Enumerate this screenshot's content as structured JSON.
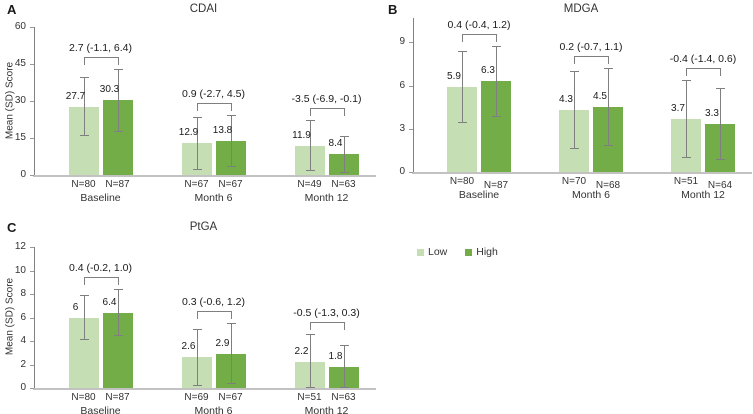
{
  "legend": {
    "items": [
      {
        "label": "Low",
        "color": "#c6deb4"
      },
      {
        "label": "High",
        "color": "#72ad48"
      }
    ]
  },
  "colors": {
    "low": "#c6deb4",
    "high": "#72ad48",
    "error_bar": "#7f7f7f"
  },
  "chart_data": [
    {
      "panel": "A",
      "type": "bar",
      "title": "CDAI",
      "ylabel": "Mean (SD) Score",
      "ylim": [
        0,
        60
      ],
      "yticks": [
        0,
        15,
        30,
        45,
        60
      ],
      "series": [
        "Low",
        "High"
      ],
      "legend_position": "right-middle-of-figure",
      "grid": false,
      "groups": [
        {
          "label": "Baseline",
          "diff_label": "2.7 (-1.1, 6.4)",
          "bars": [
            {
              "series": "Low",
              "n_label": "N=80",
              "mean": "27.7",
              "sd": 12.0
            },
            {
              "series": "High",
              "n_label": "N=87",
              "mean": "30.3",
              "sd": 12.7
            }
          ]
        },
        {
          "label": "Month 6",
          "diff_label": "0.9 (-2.7, 4.5)",
          "bars": [
            {
              "series": "Low",
              "n_label": "N=67",
              "mean": "12.9",
              "sd": 10.7
            },
            {
              "series": "High",
              "n_label": "N=67",
              "mean": "13.8",
              "sd": 10.7
            }
          ]
        },
        {
          "label": "Month 12",
          "diff_label": "-3.5 (-6.9, -0.1)",
          "bars": [
            {
              "series": "Low",
              "n_label": "N=49",
              "mean": "11.9",
              "sd": 10.3
            },
            {
              "series": "High",
              "n_label": "N=63",
              "mean": "8.4",
              "sd": 7.4
            }
          ]
        }
      ]
    },
    {
      "panel": "B",
      "type": "bar",
      "title": "MDGA",
      "ylabel": "",
      "ylim": [
        0,
        10
      ],
      "yticks": [
        0,
        3,
        6,
        9
      ],
      "series": [
        "Low",
        "High"
      ],
      "grid": false,
      "groups": [
        {
          "label": "Baseline",
          "diff_label": "0.4 (-0.4, 1.2)",
          "bars": [
            {
              "series": "Low",
              "n_label": "N=80",
              "mean": "5.9",
              "sd": 2.5
            },
            {
              "series": "High",
              "n_label": "N=87",
              "mean": "6.3",
              "sd": 2.45
            }
          ]
        },
        {
          "label": "Month 6",
          "diff_label": "0.2 (-0.7, 1.1)",
          "bars": [
            {
              "series": "Low",
              "n_label": "N=70",
              "mean": "4.3",
              "sd": 2.7
            },
            {
              "series": "High",
              "n_label": "N=68",
              "mean": "4.5",
              "sd": 2.7
            }
          ]
        },
        {
          "label": "Month 12",
          "diff_label": "-0.4 (-1.4, 0.6)",
          "bars": [
            {
              "series": "Low",
              "n_label": "N=51",
              "mean": "3.7",
              "sd": 2.7
            },
            {
              "series": "High",
              "n_label": "N=64",
              "mean": "3.3",
              "sd": 2.5
            }
          ]
        }
      ]
    },
    {
      "panel": "C",
      "type": "bar",
      "title": "PtGA",
      "ylabel": "Mean (SD) Score",
      "ylim": [
        0,
        12
      ],
      "yticks": [
        0,
        2,
        4,
        6,
        8,
        10,
        12
      ],
      "series": [
        "Low",
        "High"
      ],
      "grid": false,
      "groups": [
        {
          "label": "Baseline",
          "diff_label": "0.4 (-0.2, 1.0)",
          "bars": [
            {
              "series": "Low",
              "n_label": "N=80",
              "mean": "6",
              "sd": 1.9
            },
            {
              "series": "High",
              "n_label": "N=87",
              "mean": "6.4",
              "sd": 2.0
            }
          ]
        },
        {
          "label": "Month 6",
          "diff_label": "0.3 (-0.6, 1.2)",
          "bars": [
            {
              "series": "Low",
              "n_label": "N=69",
              "mean": "2.6",
              "sd": 2.4
            },
            {
              "series": "High",
              "n_label": "N=67",
              "mean": "2.9",
              "sd": 2.6
            }
          ]
        },
        {
          "label": "Month 12",
          "diff_label": "-0.5 (-1.3, 0.3)",
          "bars": [
            {
              "series": "Low",
              "n_label": "N=51",
              "mean": "2.2",
              "sd": 2.4
            },
            {
              "series": "High",
              "n_label": "N=63",
              "mean": "1.8",
              "sd": 1.9
            }
          ]
        }
      ]
    }
  ]
}
